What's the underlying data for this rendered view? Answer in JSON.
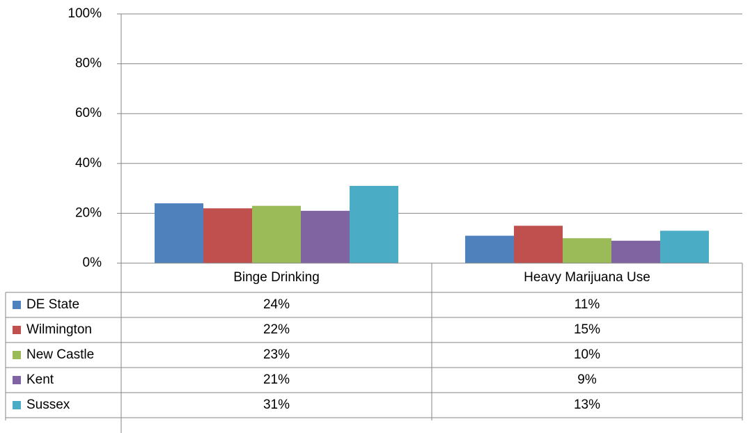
{
  "chart_data": {
    "type": "bar",
    "categories": [
      "Binge Drinking",
      "Heavy Marijuana Use"
    ],
    "series": [
      {
        "name": "DE State",
        "color": "#4f81bd",
        "values": [
          24,
          11
        ],
        "value_labels": [
          "24%",
          "11%"
        ]
      },
      {
        "name": "Wilmington",
        "color": "#c0504d",
        "values": [
          22,
          15
        ],
        "value_labels": [
          "22%",
          "15%"
        ]
      },
      {
        "name": "New Castle",
        "color": "#9bbb59",
        "values": [
          23,
          10
        ],
        "value_labels": [
          "23%",
          "10%"
        ]
      },
      {
        "name": "Kent",
        "color": "#8064a2",
        "values": [
          21,
          9
        ],
        "value_labels": [
          "21%",
          "9%"
        ]
      },
      {
        "name": "Sussex",
        "color": "#4bacc6",
        "values": [
          31,
          13
        ],
        "value_labels": [
          "31%",
          "13%"
        ]
      }
    ],
    "ylim": [
      0,
      100
    ],
    "yticks": [
      {
        "value": 0,
        "label": "0%"
      },
      {
        "value": 20,
        "label": "20%"
      },
      {
        "value": 40,
        "label": "40%"
      },
      {
        "value": 60,
        "label": "60%"
      },
      {
        "value": 80,
        "label": "80%"
      },
      {
        "value": 100,
        "label": "100%"
      }
    ],
    "grid": true
  }
}
